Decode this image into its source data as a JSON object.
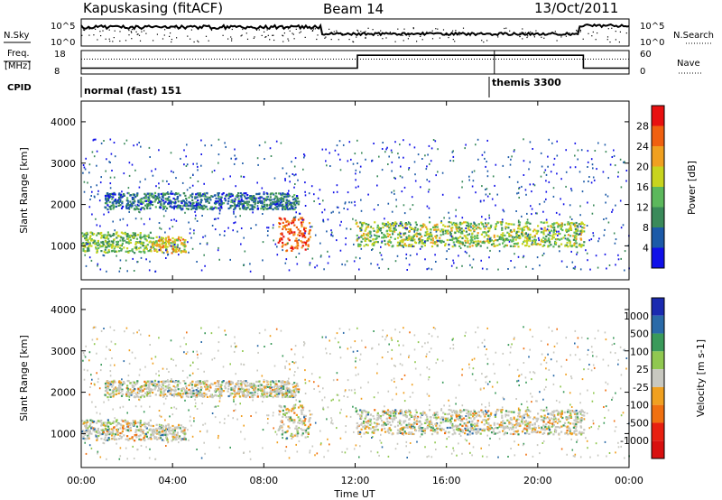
{
  "header": {
    "station": "Kapuskasing (fitACF)",
    "beam": "Beam 14",
    "date": "13/Oct/2011"
  },
  "noise_panel": {
    "left_label": "N.Sky",
    "right_label": "N.Search",
    "left_ticks": [
      "10^5",
      "10^0"
    ],
    "right_ticks": [
      "10^5",
      "10^0"
    ]
  },
  "freq_panel": {
    "left_label_line1": "Freq.",
    "left_label_line2": "[MHz]",
    "right_label": "Nave",
    "left_ticks": [
      "18",
      "8"
    ],
    "right_ticks": [
      "60",
      "0"
    ],
    "freq_steps": [
      {
        "start_hour": 0,
        "end_hour": 12.1,
        "value": 10.5
      },
      {
        "start_hour": 12.1,
        "end_hour": 22.0,
        "value": 16.0
      },
      {
        "start_hour": 22.0,
        "end_hour": 24.0,
        "value": 10.5
      }
    ],
    "nave_level": 38
  },
  "cpid": {
    "label": "CPID",
    "modes": [
      {
        "text": "normal (fast) 151",
        "start_hour": 0
      },
      {
        "text": "themis 3300",
        "start_hour": 18.1
      }
    ]
  },
  "power_panel": {
    "ylabel": "Slant Range [km]",
    "yticks": [
      "1000",
      "2000",
      "3000",
      "4000"
    ],
    "colorbar_label": "Power [dB]",
    "colorbar_ticks": [
      "4",
      "8",
      "12",
      "16",
      "20",
      "24",
      "28"
    ],
    "colors": [
      "#1010e8",
      "#1c5aa8",
      "#3a8a5a",
      "#5cb85c",
      "#c8d41e",
      "#f0a020",
      "#f06010",
      "#e81010"
    ]
  },
  "velocity_panel": {
    "ylabel": "Slant Range [km]",
    "yticks": [
      "1000",
      "2000",
      "3000",
      "4000"
    ],
    "colorbar_label": "Velocity [m s-1]",
    "colorbar_ticks": [
      "1000",
      "500",
      "100",
      "25",
      "-25",
      "-100",
      "-500",
      "-1000"
    ],
    "colors": [
      "#1a2ab0",
      "#2a6aa8",
      "#3a9a5a",
      "#90c850",
      "#c8c8c0",
      "#f0a020",
      "#f07010",
      "#e82010",
      "#d81010"
    ]
  },
  "xaxis": {
    "label": "Time UT",
    "ticks": [
      "00:00",
      "04:00",
      "08:00",
      "12:00",
      "16:00",
      "20:00",
      "00:00"
    ]
  },
  "chart_data": {
    "type": "heatmap",
    "xlabel": "Time UT",
    "ylabel": "Slant Range [km]",
    "xlim_hours": [
      0,
      24
    ],
    "ylim_km": [
      180,
      4500
    ],
    "series": [
      {
        "name": "Power [dB]",
        "cbar_range": [
          0,
          32
        ]
      },
      {
        "name": "Velocity [m s-1]",
        "cbar_range": [
          -1000,
          1000
        ]
      }
    ],
    "features": [
      {
        "start_hour": 0.0,
        "end_hour": 3.0,
        "range_km_start": 850,
        "range_km_end": 1350,
        "power_db": 14
      },
      {
        "start_hour": 3.0,
        "end_hour": 4.6,
        "range_km_start": 850,
        "range_km_end": 1250,
        "power_db": 20
      },
      {
        "start_hour": 8.6,
        "end_hour": 10.0,
        "range_km_start": 900,
        "range_km_end": 1700,
        "power_db": 26
      },
      {
        "start_hour": 12.0,
        "end_hour": 22.0,
        "range_km_start": 1000,
        "range_km_end": 1600,
        "power_db": 16
      },
      {
        "start_hour": 1.0,
        "end_hour": 9.5,
        "range_km_start": 1900,
        "range_km_end": 2300,
        "power_db": 8
      }
    ]
  }
}
